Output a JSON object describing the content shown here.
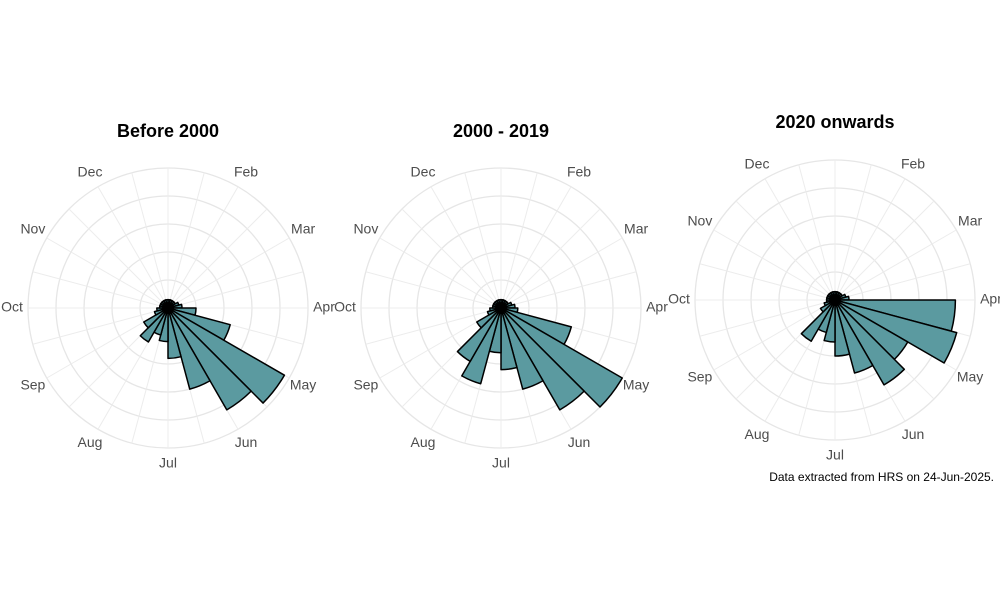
{
  "chart_data": [
    {
      "type": "polar_bar",
      "title": "Before 2000",
      "theta_labels": [
        null,
        "Feb",
        "Mar",
        "Apr",
        "May",
        "Jun",
        "Jul",
        "Aug",
        "Sep",
        "Oct",
        "Nov",
        "Dec"
      ],
      "values": [
        0.3,
        0.3,
        0.3,
        0.3,
        0.4,
        0.5,
        1.0,
        2.3,
        4.8,
        4.2,
        3.0,
        1.8,
        1.2,
        1.0,
        1.4,
        1.0,
        0.5,
        0.4,
        0.3,
        0.3,
        0.3,
        0.3,
        0.3,
        0.3
      ],
      "color": "#5b9aa0",
      "ylim": [
        0,
        5
      ],
      "yticks": [
        1,
        2,
        3,
        4,
        5
      ],
      "grid": true
    },
    {
      "type": "polar_bar",
      "title": "2000 - 2019",
      "theta_labels": [
        null,
        "Feb",
        "Mar",
        "Apr",
        "May",
        "Jun",
        "Jul",
        "Aug",
        "Sep",
        "Oct",
        "Nov",
        "Dec"
      ],
      "values": [
        0.3,
        0.3,
        0.3,
        0.3,
        0.4,
        0.5,
        0.6,
        2.6,
        5.0,
        4.2,
        3.0,
        2.2,
        1.6,
        2.8,
        2.2,
        1.0,
        0.5,
        0.4,
        0.3,
        0.3,
        0.3,
        0.3,
        0.3,
        0.3
      ],
      "color": "#5b9aa0",
      "ylim": [
        0,
        5
      ],
      "yticks": [
        1,
        2,
        3,
        4,
        5
      ],
      "grid": true
    },
    {
      "type": "polar_bar",
      "title": "2020 onwards",
      "theta_labels": [
        null,
        "Feb",
        "Mar",
        "Apr",
        "May",
        "Jun",
        "Jul",
        "Aug",
        "Sep",
        "Oct",
        "Nov",
        "Dec"
      ],
      "values": [
        0.3,
        0.3,
        0.3,
        0.3,
        0.4,
        0.5,
        4.3,
        4.5,
        3.0,
        3.5,
        2.7,
        2.0,
        1.5,
        1.2,
        1.7,
        0.6,
        0.4,
        0.3,
        0.3,
        0.3,
        0.3,
        0.3,
        0.3,
        0.3
      ],
      "color": "#5b9aa0",
      "ylim": [
        0,
        5
      ],
      "yticks": [
        1,
        2,
        3,
        4,
        5
      ],
      "grid": true
    }
  ],
  "caption": "Data extracted from HRS on 24-Jun-2025."
}
